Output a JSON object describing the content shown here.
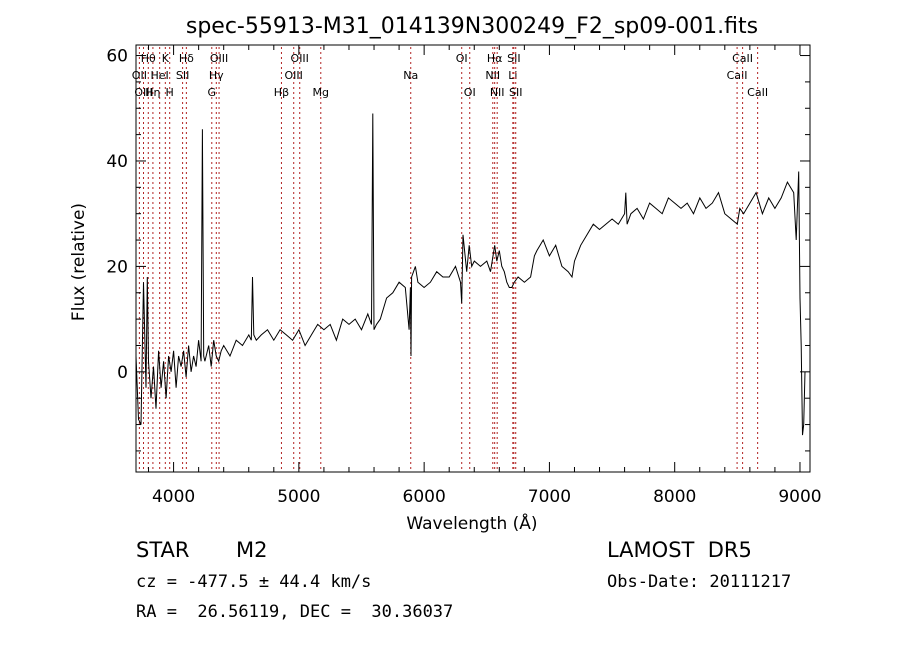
{
  "chart_data": {
    "type": "line",
    "title": "spec-55913-M31_014139N300249_F2_sp09-001.fits",
    "xlabel": "Wavelength (Å)",
    "ylabel": "Flux (relative)",
    "xlim": [
      3700,
      9080
    ],
    "ylim": [
      -19,
      62
    ],
    "xticks": [
      4000,
      5000,
      6000,
      7000,
      8000,
      9000
    ],
    "yticks": [
      0,
      20,
      40,
      60
    ],
    "grid": false,
    "series": [
      {
        "color": "#000000",
        "x": [
          3700,
          3720,
          3740,
          3760,
          3780,
          3790,
          3800,
          3820,
          3840,
          3860,
          3880,
          3900,
          3920,
          3940,
          3960,
          3980,
          4000,
          4020,
          4040,
          4060,
          4080,
          4100,
          4120,
          4140,
          4160,
          4180,
          4200,
          4220,
          4230,
          4240,
          4250,
          4280,
          4300,
          4320,
          4340,
          4360,
          4380,
          4400,
          4450,
          4500,
          4550,
          4600,
          4620,
          4630,
          4640,
          4660,
          4700,
          4750,
          4800,
          4850,
          4900,
          4950,
          5000,
          5050,
          5100,
          5150,
          5200,
          5250,
          5300,
          5350,
          5400,
          5450,
          5500,
          5550,
          5580,
          5590,
          5600,
          5620,
          5650,
          5700,
          5750,
          5800,
          5850,
          5880,
          5890,
          5895,
          5900,
          5930,
          5950,
          6000,
          6050,
          6100,
          6150,
          6200,
          6250,
          6290,
          6300,
          6310,
          6340,
          6360,
          6380,
          6400,
          6450,
          6500,
          6530,
          6563,
          6580,
          6600,
          6620,
          6640,
          6660,
          6680,
          6700,
          6720,
          6750,
          6800,
          6850,
          6880,
          6900,
          6950,
          7000,
          7050,
          7100,
          7150,
          7180,
          7200,
          7250,
          7300,
          7350,
          7400,
          7450,
          7500,
          7550,
          7600,
          7610,
          7620,
          7650,
          7700,
          7750,
          7800,
          7850,
          7900,
          7950,
          8000,
          8050,
          8100,
          8150,
          8200,
          8250,
          8300,
          8350,
          8400,
          8450,
          8500,
          8520,
          8550,
          8600,
          8650,
          8700,
          8750,
          8800,
          8850,
          8900,
          8950,
          8970,
          8990,
          9000,
          9010,
          9020,
          9030,
          9040
        ],
        "y": [
          3,
          -9,
          -10,
          17,
          -3,
          18,
          2,
          -5,
          1,
          -7,
          4,
          -3,
          2,
          -5,
          3,
          0,
          4,
          -3,
          3,
          1,
          4,
          -1,
          5,
          0,
          3,
          1,
          6,
          2,
          46,
          3,
          2,
          5,
          1,
          6,
          3,
          2,
          4,
          5,
          3,
          6,
          5,
          7,
          6,
          18,
          7,
          6,
          7,
          8,
          6,
          8,
          7,
          6,
          8,
          5,
          7,
          9,
          8,
          9,
          6,
          10,
          9,
          10,
          8,
          11,
          9,
          49,
          8,
          9,
          10,
          14,
          15,
          17,
          16,
          8,
          16,
          3,
          18,
          20,
          17,
          16,
          17,
          19,
          18,
          18,
          20,
          17,
          13,
          26,
          19,
          24,
          20,
          21,
          20,
          21,
          19,
          24,
          21,
          23,
          20,
          19,
          17,
          16,
          16,
          17,
          18,
          17,
          18,
          22,
          23,
          25,
          22,
          24,
          20,
          19,
          18,
          21,
          24,
          26,
          28,
          27,
          28,
          29,
          28,
          30,
          34,
          28,
          30,
          31,
          29,
          32,
          31,
          30,
          33,
          32,
          31,
          32,
          30,
          33,
          31,
          32,
          34,
          30,
          29,
          28,
          31,
          30,
          32,
          34,
          30,
          33,
          31,
          33,
          36,
          34,
          25,
          38,
          14,
          5,
          -12,
          -10,
          0
        ]
      }
    ],
    "line_markers": [
      {
        "label": "Hθ",
        "x": 3798,
        "row": 1
      },
      {
        "label": "OII",
        "x": 3727,
        "row": 2
      },
      {
        "label": "OIII",
        "x": 3760,
        "row": 3
      },
      {
        "label": "Hη",
        "x": 3835,
        "row": 3
      },
      {
        "label": "HeI",
        "x": 3889,
        "row": 2
      },
      {
        "label": "K",
        "x": 3934,
        "row": 1
      },
      {
        "label": "H",
        "x": 3969,
        "row": 3
      },
      {
        "label": "SII",
        "x": 4072,
        "row": 2
      },
      {
        "label": "Hδ",
        "x": 4102,
        "row": 1
      },
      {
        "label": "Hγ",
        "x": 4341,
        "row": 2
      },
      {
        "label": "OIII",
        "x": 4363,
        "row": 1
      },
      {
        "label": "G",
        "x": 4305,
        "row": 3
      },
      {
        "label": "Hβ",
        "x": 4861,
        "row": 3
      },
      {
        "label": "OIII",
        "x": 4959,
        "row": 2
      },
      {
        "label": "OIII",
        "x": 5007,
        "row": 1
      },
      {
        "label": "Mg",
        "x": 5175,
        "row": 3
      },
      {
        "label": "Na",
        "x": 5893,
        "row": 2
      },
      {
        "label": "OI",
        "x": 6300,
        "row": 1
      },
      {
        "label": "OI",
        "x": 6364,
        "row": 3
      },
      {
        "label": "NII",
        "x": 6548,
        "row": 2
      },
      {
        "label": "Hα",
        "x": 6563,
        "row": 1
      },
      {
        "label": "NII",
        "x": 6583,
        "row": 3
      },
      {
        "label": "Li",
        "x": 6708,
        "row": 2
      },
      {
        "label": "SII",
        "x": 6716,
        "row": 1
      },
      {
        "label": "SII",
        "x": 6731,
        "row": 3
      },
      {
        "label": "CaII",
        "x": 8498,
        "row": 2
      },
      {
        "label": "CaII",
        "x": 8542,
        "row": 1
      },
      {
        "label": "CaII",
        "x": 8662,
        "row": 3
      }
    ]
  },
  "info": {
    "object_type": "STAR",
    "object_subclass": "M2",
    "survey": "LAMOST  DR5",
    "cz": "cz = -477.5 ± 44.4 km/s",
    "obs_date": "Obs-Date: 20111217",
    "radec": "RA =  26.56119, DEC =  30.36037"
  }
}
